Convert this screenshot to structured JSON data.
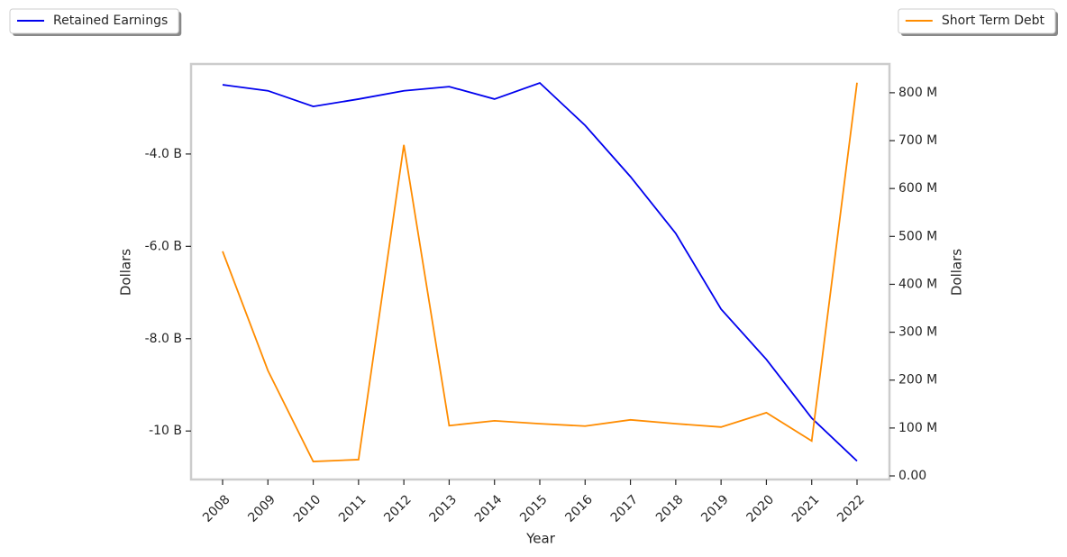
{
  "chart_data": {
    "type": "line",
    "categories": [
      "2008",
      "2009",
      "2010",
      "2011",
      "2012",
      "2013",
      "2014",
      "2015",
      "2016",
      "2017",
      "2018",
      "2019",
      "2020",
      "2021",
      "2022"
    ],
    "xlabel": "Year",
    "ylabel": "Dollars",
    "y2label": "Dollars",
    "series": [
      {
        "name": "Retained Earnings",
        "color": "#0000ee",
        "axis": "y",
        "legend_loc": "upper left",
        "values": [
          -2500000000,
          -2630000000,
          -2970000000,
          -2810000000,
          -2630000000,
          -2540000000,
          -2810000000,
          -2460000000,
          -3380000000,
          -4490000000,
          -5720000000,
          -7360000000,
          -8450000000,
          -9720000000,
          -10650000000
        ]
      },
      {
        "name": "Short Term Debt",
        "color": "#ff8c00",
        "axis": "y2",
        "legend_loc": "upper right",
        "values": [
          469000000,
          220000000,
          30000000,
          34000000,
          691000000,
          105000000,
          115000000,
          109000000,
          104000000,
          117000000,
          109000000,
          102000000,
          132000000,
          73000000,
          821000000
        ]
      }
    ],
    "ylim": [
      -11050000000,
      -2050000000
    ],
    "yticks": [
      {
        "value": -4000000000,
        "label": "-4.0 B"
      },
      {
        "value": -6000000000,
        "label": "-6.0 B"
      },
      {
        "value": -8000000000,
        "label": "-8.0 B"
      },
      {
        "value": -10000000000,
        "label": "-10 B"
      }
    ],
    "y2lim": [
      -7500000,
      860000000
    ],
    "y2ticks": [
      {
        "value": 0,
        "label": "0.00"
      },
      {
        "value": 100000000,
        "label": "100 M"
      },
      {
        "value": 200000000,
        "label": "200 M"
      },
      {
        "value": 300000000,
        "label": "300 M"
      },
      {
        "value": 400000000,
        "label": "400 M"
      },
      {
        "value": 500000000,
        "label": "500 M"
      },
      {
        "value": 600000000,
        "label": "600 M"
      },
      {
        "value": 700000000,
        "label": "700 M"
      },
      {
        "value": 800000000,
        "label": "800 M"
      }
    ],
    "grid": false
  }
}
